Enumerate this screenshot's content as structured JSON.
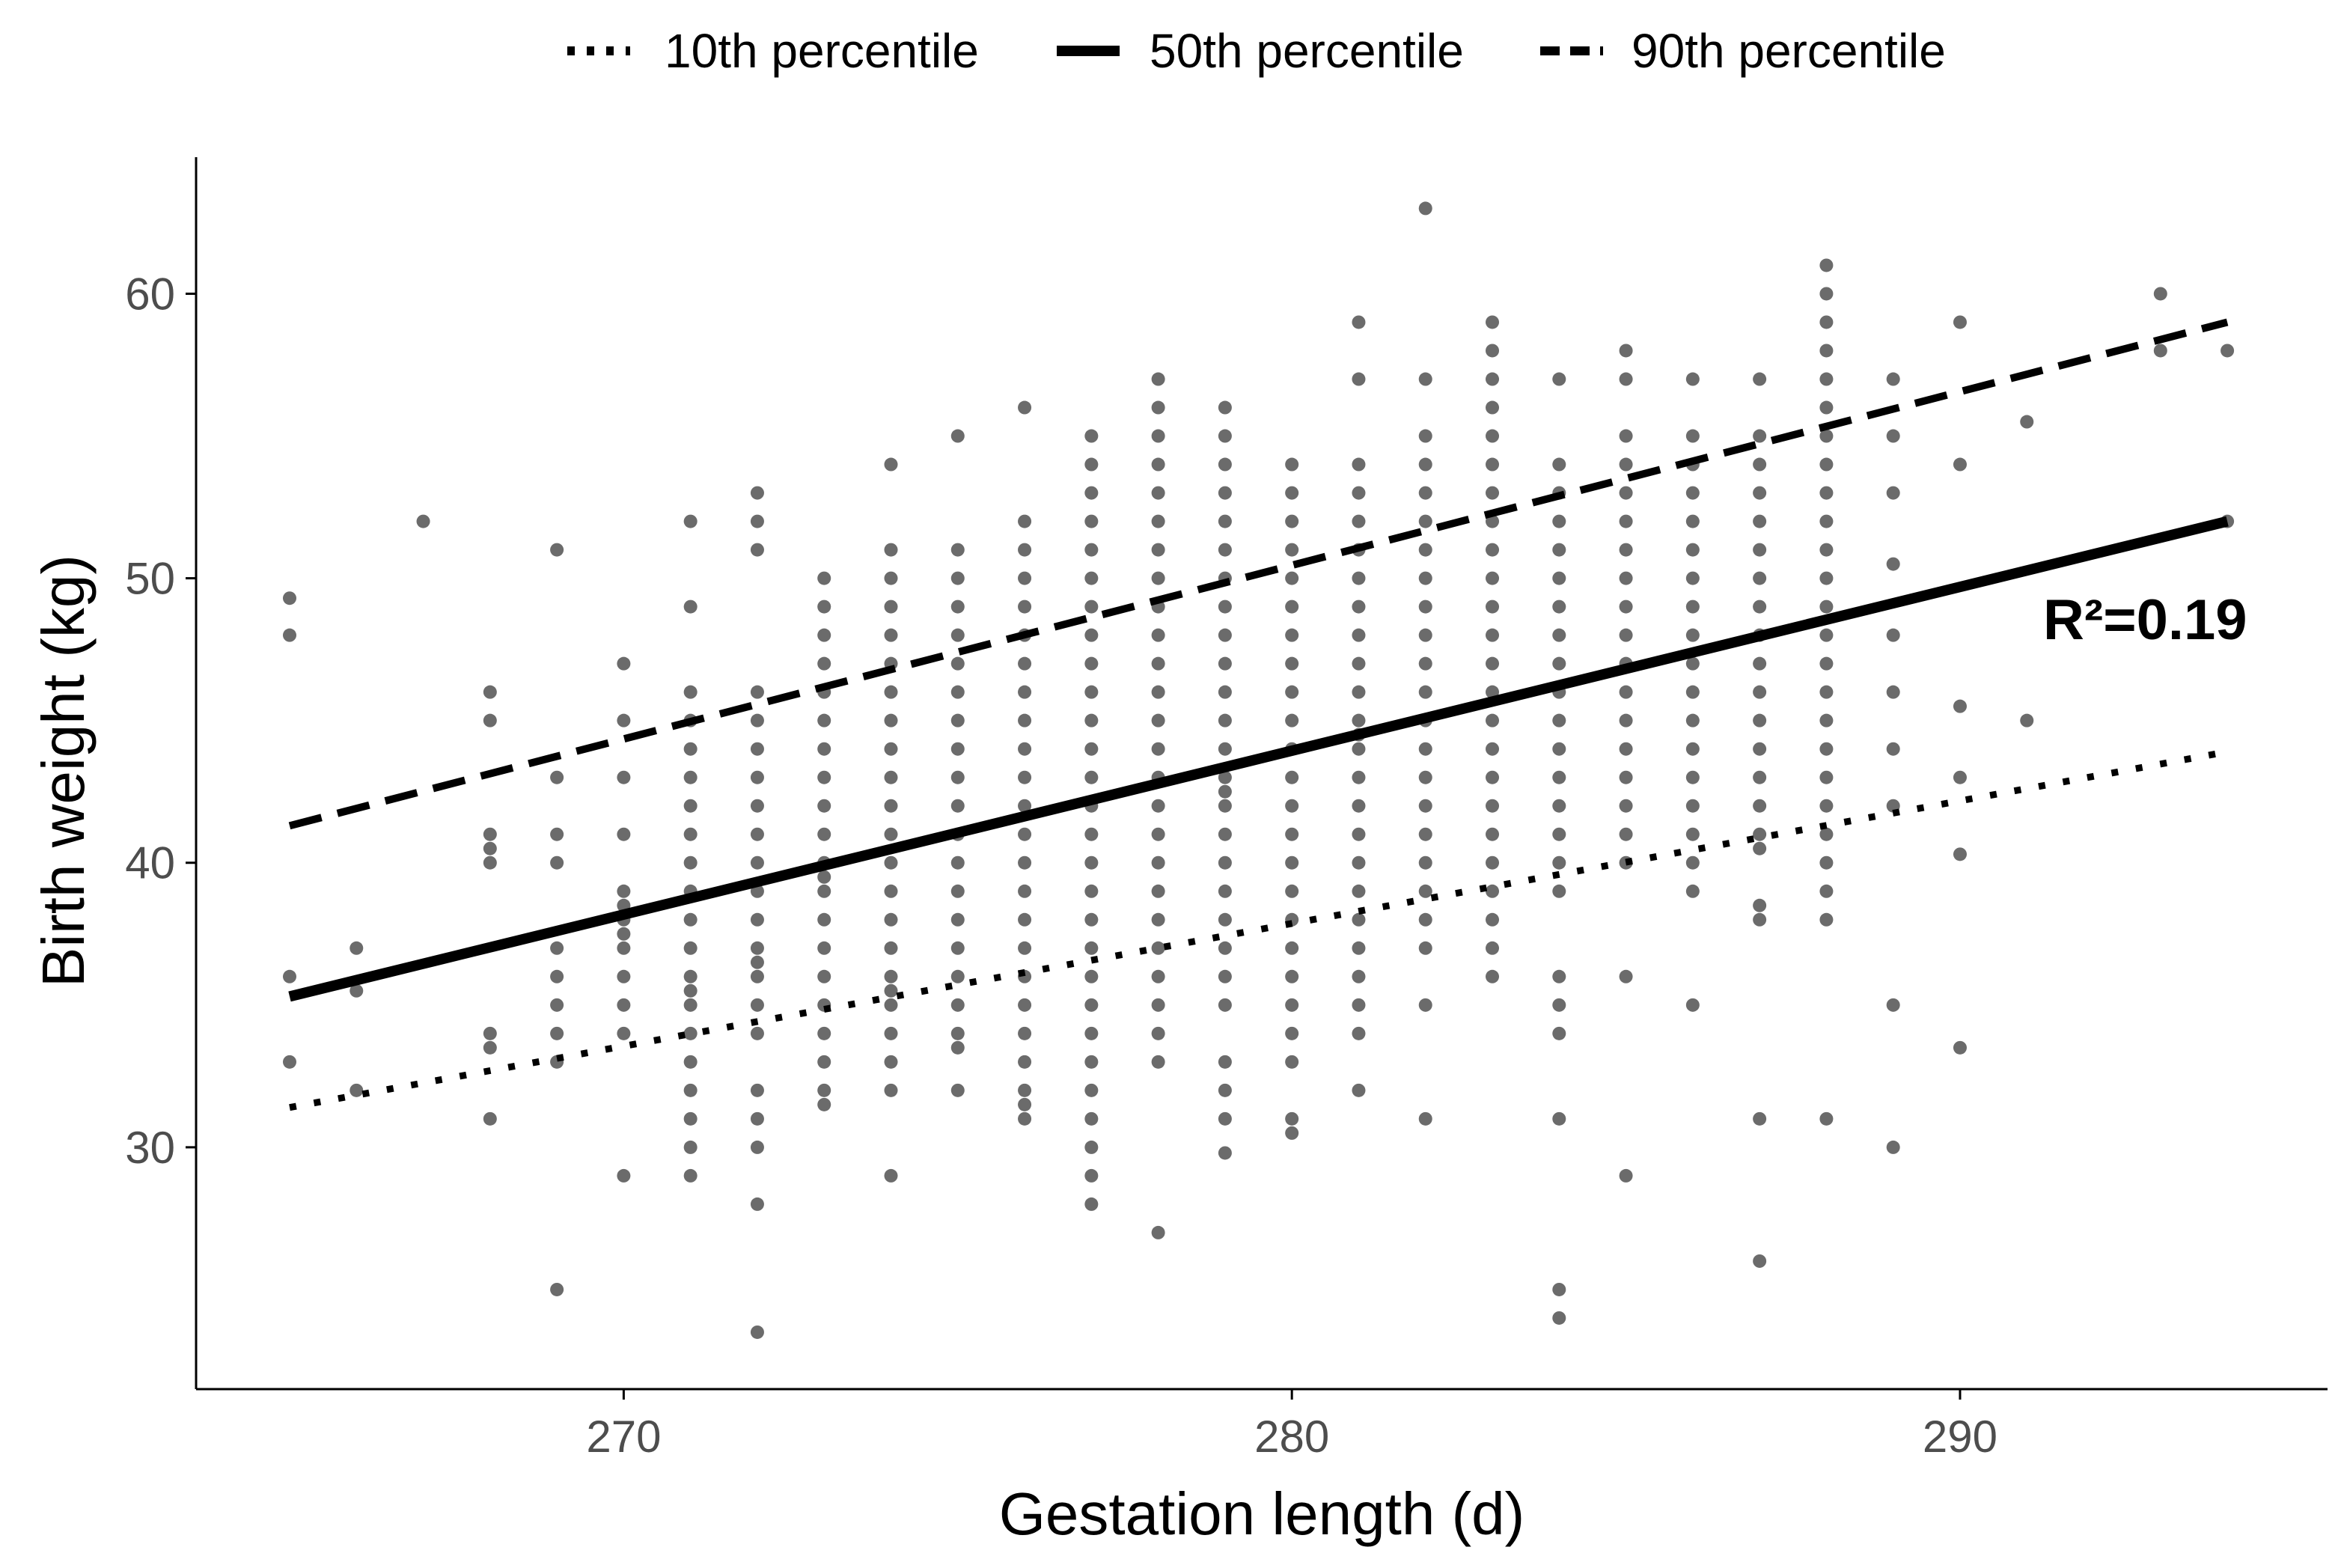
{
  "chart_data": {
    "type": "scatter",
    "title": "",
    "xlabel": "Gestation length (d)",
    "ylabel": "Birth weight (kg)",
    "xlim": [
      263.6,
      295.5
    ],
    "ylim": [
      21.5,
      64.8
    ],
    "xticks": [
      270,
      280,
      290
    ],
    "yticks": [
      30,
      40,
      50,
      60
    ],
    "grid": false,
    "legend_position": "top",
    "annotation": "R²=0.19",
    "colors": {
      "points": "#6b6b6b",
      "lines": "#000000",
      "axis": "#000000",
      "tick_text": "#4d4d4d"
    },
    "legend": [
      {
        "key": "p10",
        "label": "10th percentile",
        "style": "dotted"
      },
      {
        "key": "p50",
        "label": "50th percentile",
        "style": "solid"
      },
      {
        "key": "p90",
        "label": "90th percentile",
        "style": "dashed"
      }
    ],
    "series": [
      {
        "name": "10th percentile",
        "style": "dotted",
        "x": [
          265,
          294
        ],
        "y": [
          31.4,
          43.9
        ]
      },
      {
        "name": "50th percentile",
        "style": "solid",
        "x": [
          265,
          294
        ],
        "y": [
          35.3,
          52.0
        ]
      },
      {
        "name": "90th percentile",
        "style": "dashed",
        "x": [
          265,
          294
        ],
        "y": [
          41.3,
          59.0
        ]
      }
    ],
    "points": [
      {
        "x": 265,
        "ys": [
          49.3,
          48.0,
          36.0,
          33.0
        ]
      },
      {
        "x": 266,
        "ys": [
          37.0,
          35.5,
          32.0
        ]
      },
      {
        "x": 267,
        "ys": [
          52.0
        ]
      },
      {
        "x": 268,
        "ys": [
          46.0,
          45.0,
          41.0,
          40.5,
          40.0,
          34.0,
          33.5,
          31.0
        ]
      },
      {
        "x": 269,
        "ys": [
          51.0,
          43.0,
          41.0,
          40.0,
          37.0,
          36.0,
          35.0,
          34.0,
          33.0,
          25.0
        ]
      },
      {
        "x": 270,
        "ys": [
          47.0,
          45.0,
          43.0,
          41.0,
          39.0,
          38.5,
          38.0,
          37.5,
          37.0,
          36.0,
          35.0,
          34.0,
          29.0
        ]
      },
      {
        "x": 271,
        "ys": [
          52.0,
          49.0,
          46.0,
          45.0,
          44.0,
          43.0,
          42.0,
          41.0,
          40.0,
          39.0,
          38.0,
          37.0,
          36.0,
          35.5,
          35.0,
          34.0,
          33.0,
          32.0,
          31.0,
          30.0,
          29.0
        ]
      },
      {
        "x": 272,
        "ys": [
          53.0,
          52.0,
          51.0,
          46.0,
          45.0,
          44.0,
          43.0,
          42.0,
          41.0,
          40.0,
          39.0,
          38.0,
          37.0,
          36.5,
          36.0,
          35.0,
          34.0,
          32.0,
          31.0,
          30.0,
          28.0,
          23.5
        ]
      },
      {
        "x": 273,
        "ys": [
          50.0,
          49.0,
          48.0,
          47.0,
          46.0,
          45.0,
          44.0,
          43.0,
          42.0,
          41.0,
          40.0,
          39.5,
          39.0,
          38.0,
          37.0,
          36.0,
          35.0,
          34.0,
          33.0,
          32.0,
          31.5
        ]
      },
      {
        "x": 274,
        "ys": [
          54.0,
          51.0,
          50.0,
          49.0,
          48.0,
          47.0,
          46.0,
          45.0,
          44.0,
          43.0,
          42.0,
          41.0,
          40.0,
          39.0,
          38.0,
          37.0,
          36.0,
          35.5,
          35.0,
          34.0,
          33.0,
          32.0,
          29.0
        ]
      },
      {
        "x": 275,
        "ys": [
          55.0,
          51.0,
          50.0,
          49.0,
          48.0,
          47.0,
          46.0,
          45.0,
          44.0,
          43.0,
          42.0,
          41.0,
          40.0,
          39.0,
          38.0,
          37.0,
          36.0,
          35.0,
          34.0,
          33.5,
          32.0
        ]
      },
      {
        "x": 276,
        "ys": [
          56.0,
          52.0,
          51.0,
          50.0,
          49.0,
          48.0,
          47.0,
          46.0,
          45.0,
          44.0,
          43.0,
          42.0,
          41.0,
          40.0,
          39.0,
          38.0,
          37.0,
          36.0,
          35.0,
          34.0,
          33.0,
          32.0,
          31.5,
          31.0
        ]
      },
      {
        "x": 277,
        "ys": [
          55.0,
          54.0,
          53.0,
          52.0,
          51.0,
          50.0,
          49.0,
          48.0,
          47.0,
          46.0,
          45.0,
          44.0,
          43.0,
          42.0,
          41.0,
          40.0,
          39.0,
          38.0,
          37.0,
          36.0,
          35.0,
          34.0,
          33.0,
          32.0,
          31.0,
          30.0,
          29.0,
          28.0
        ]
      },
      {
        "x": 278,
        "ys": [
          57.0,
          56.0,
          55.0,
          54.0,
          53.0,
          52.0,
          51.0,
          50.0,
          49.0,
          48.0,
          47.0,
          46.0,
          45.0,
          44.0,
          43.0,
          42.0,
          41.0,
          40.0,
          39.0,
          38.0,
          37.0,
          36.0,
          35.0,
          34.0,
          33.0,
          27.0
        ]
      },
      {
        "x": 279,
        "ys": [
          56.0,
          55.0,
          54.0,
          53.0,
          52.0,
          51.0,
          50.0,
          49.0,
          48.0,
          47.0,
          46.0,
          45.0,
          44.0,
          43.0,
          42.5,
          42.0,
          41.0,
          40.0,
          39.0,
          38.0,
          37.0,
          36.0,
          35.0,
          33.0,
          32.0,
          31.0,
          29.8
        ]
      },
      {
        "x": 280,
        "ys": [
          54.0,
          53.0,
          52.0,
          51.0,
          50.0,
          49.0,
          48.0,
          47.0,
          46.0,
          45.0,
          44.0,
          43.0,
          42.0,
          41.0,
          40.0,
          39.0,
          38.0,
          37.0,
          36.0,
          35.0,
          34.0,
          33.0,
          31.0,
          30.5
        ]
      },
      {
        "x": 281,
        "ys": [
          59.0,
          57.0,
          54.0,
          53.0,
          52.0,
          51.0,
          50.0,
          49.0,
          48.0,
          47.0,
          46.0,
          45.0,
          44.5,
          44.0,
          43.0,
          42.0,
          41.0,
          40.0,
          39.0,
          38.0,
          37.0,
          36.0,
          35.0,
          34.0,
          32.0
        ]
      },
      {
        "x": 282,
        "ys": [
          63.0,
          57.0,
          55.0,
          54.0,
          53.0,
          52.0,
          51.0,
          50.0,
          49.0,
          48.0,
          47.0,
          46.0,
          45.0,
          44.0,
          43.0,
          42.0,
          41.0,
          40.0,
          39.0,
          38.0,
          37.0,
          35.0,
          31.0
        ]
      },
      {
        "x": 283,
        "ys": [
          59.0,
          58.0,
          57.0,
          56.0,
          55.0,
          54.0,
          53.0,
          52.0,
          51.0,
          50.0,
          49.0,
          48.0,
          47.0,
          46.0,
          45.0,
          44.0,
          43.0,
          42.0,
          41.0,
          40.0,
          39.0,
          38.0,
          37.0,
          36.0
        ]
      },
      {
        "x": 284,
        "ys": [
          57.0,
          54.0,
          53.0,
          52.0,
          51.0,
          50.0,
          49.0,
          48.0,
          47.0,
          46.0,
          45.0,
          44.0,
          43.0,
          42.0,
          41.0,
          40.0,
          39.0,
          36.0,
          35.0,
          34.0,
          31.0,
          25.0,
          24.0
        ]
      },
      {
        "x": 285,
        "ys": [
          58.0,
          57.0,
          55.0,
          54.0,
          53.0,
          52.0,
          51.0,
          50.0,
          49.0,
          48.0,
          47.0,
          46.0,
          45.0,
          44.0,
          43.0,
          42.0,
          41.0,
          40.0,
          36.0,
          29.0
        ]
      },
      {
        "x": 286,
        "ys": [
          57.0,
          55.0,
          54.0,
          53.0,
          52.0,
          51.0,
          50.0,
          49.0,
          48.0,
          47.0,
          46.0,
          45.0,
          44.0,
          43.0,
          42.0,
          41.0,
          40.0,
          39.0,
          35.0
        ]
      },
      {
        "x": 287,
        "ys": [
          57.0,
          55.0,
          54.0,
          53.0,
          52.0,
          51.0,
          50.0,
          49.0,
          48.0,
          47.0,
          46.0,
          45.0,
          44.0,
          43.0,
          42.0,
          41.0,
          40.5,
          38.5,
          38.0,
          31.0,
          26.0
        ]
      },
      {
        "x": 288,
        "ys": [
          61.0,
          60.0,
          59.0,
          58.0,
          57.0,
          56.0,
          55.0,
          54.0,
          53.0,
          52.0,
          51.0,
          50.0,
          49.0,
          48.0,
          47.0,
          46.0,
          45.0,
          44.0,
          43.0,
          42.0,
          41.0,
          40.0,
          39.0,
          38.0,
          31.0
        ]
      },
      {
        "x": 289,
        "ys": [
          57.0,
          55.0,
          53.0,
          50.5,
          48.0,
          46.0,
          44.0,
          42.0,
          35.0,
          30.0
        ]
      },
      {
        "x": 290,
        "ys": [
          59.0,
          54.0,
          45.5,
          43.0,
          40.3,
          33.5
        ]
      },
      {
        "x": 291,
        "ys": [
          55.5,
          45.0
        ]
      },
      {
        "x": 293,
        "ys": [
          60.0,
          58.0
        ]
      },
      {
        "x": 294,
        "ys": [
          58.0,
          52.0
        ]
      }
    ]
  }
}
